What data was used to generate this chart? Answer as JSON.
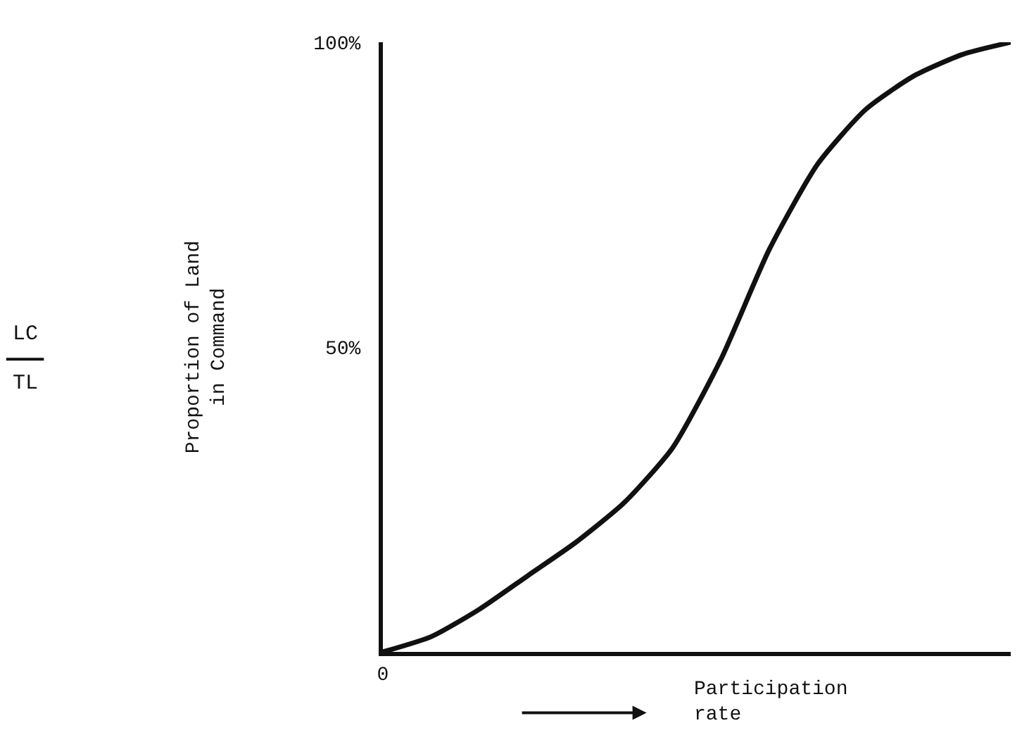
{
  "chart_data": {
    "type": "line",
    "categories": [
      "0",
      null,
      null,
      null,
      null,
      null,
      null,
      null,
      null,
      null,
      null,
      null,
      null,
      null
    ],
    "series": [
      {
        "color": "#111111",
        "values": [
          0,
          2.5,
          7,
          12.5,
          18,
          24.5,
          33.5,
          48,
          66,
          80,
          89,
          94.5,
          98,
          100
        ]
      }
    ],
    "ylim": [
      0,
      100
    ],
    "yticks": [
      {
        "value": 50,
        "label": "50%"
      },
      {
        "value": 100,
        "label": "100%"
      }
    ],
    "ylabel": "Proportion of Land\nin Command",
    "xlabel": "Participation rate",
    "annotations": [
      "LC",
      "TL"
    ],
    "marker": "none",
    "line_style": "solid"
  }
}
